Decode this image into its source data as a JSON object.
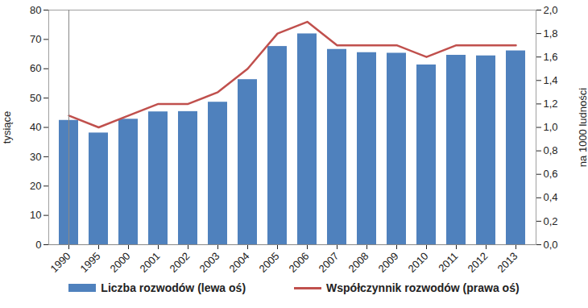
{
  "chart_data": {
    "type": "bar",
    "categories": [
      "1990",
      "1995",
      "2000",
      "2001",
      "2002",
      "2003",
      "2004",
      "2005",
      "2006",
      "2007",
      "2008",
      "2009",
      "2010",
      "2011",
      "2012",
      "2013"
    ],
    "series": [
      {
        "name": "Liczba rozwodów (lewa oś)",
        "type": "bar",
        "color": "#4f81bd",
        "values": [
          42.4,
          38.1,
          42.8,
          45.3,
          45.4,
          48.6,
          56.3,
          67.6,
          71.9,
          66.6,
          65.5,
          65.3,
          61.3,
          64.6,
          64.4,
          66.1
        ]
      },
      {
        "name": "Współczynnik rozwodów (prawa oś)",
        "type": "line",
        "axis": "y2",
        "color": "#c0504d",
        "values": [
          1.1,
          1.0,
          1.1,
          1.2,
          1.2,
          1.3,
          1.5,
          1.8,
          1.9,
          1.7,
          1.7,
          1.7,
          1.6,
          1.7,
          1.7,
          1.7
        ]
      }
    ],
    "y_label": "tysiące",
    "y2_label": "na 1000 ludności",
    "ylim": [
      0,
      80
    ],
    "yticks": [
      0,
      10,
      20,
      30,
      40,
      50,
      60,
      70,
      80
    ],
    "y2lim": [
      0,
      2
    ],
    "y2ticks": [
      {
        "value": 0,
        "label": "0,0"
      },
      {
        "value": 0.2,
        "label": "0,2"
      },
      {
        "value": 0.4,
        "label": "0,4"
      },
      {
        "value": 0.6,
        "label": "0,6"
      },
      {
        "value": 0.8,
        "label": "0,8"
      },
      {
        "value": 1.0,
        "label": "1,0"
      },
      {
        "value": 1.2,
        "label": "1,2"
      },
      {
        "value": 1.4,
        "label": "1,4"
      },
      {
        "value": 1.6,
        "label": "1,6"
      },
      {
        "value": 1.8,
        "label": "1,8"
      },
      {
        "value": 2.0,
        "label": "2,0"
      }
    ],
    "grid": false,
    "legend": "bottom"
  }
}
